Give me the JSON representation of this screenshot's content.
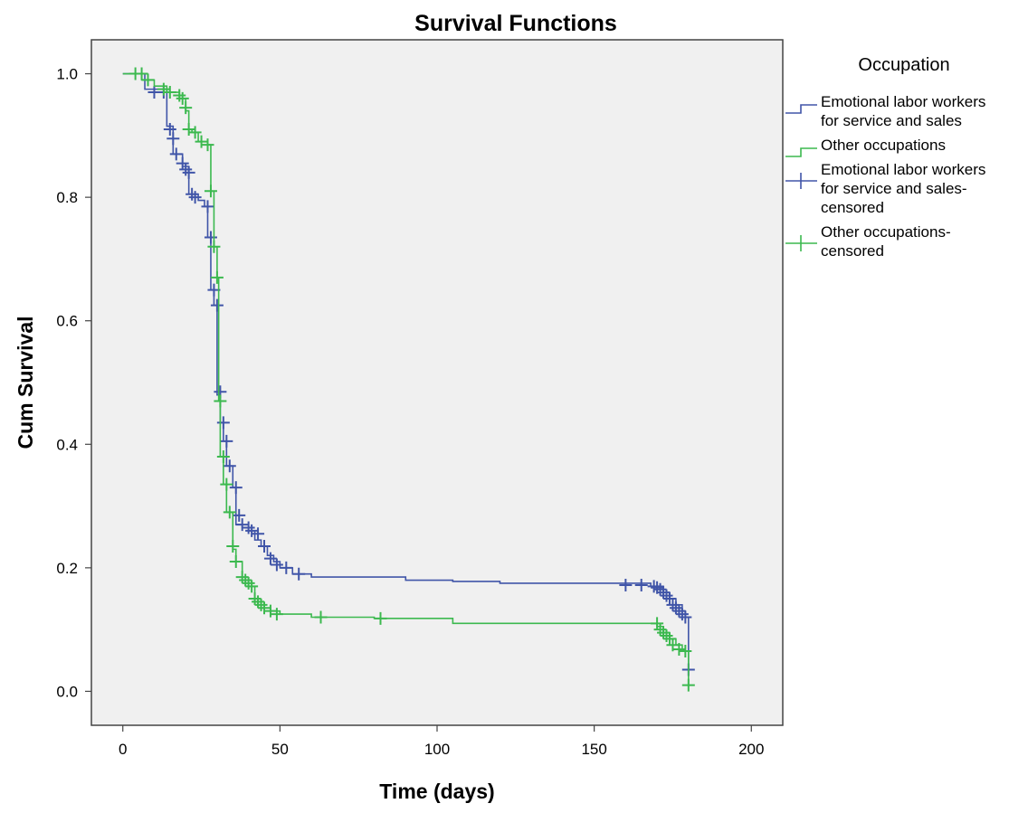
{
  "chart_data": {
    "type": "line",
    "title": "Survival Functions",
    "xlabel": "Time (days)",
    "ylabel": "Cum Survival",
    "xlim": [
      -10,
      210
    ],
    "ylim": [
      -0.055,
      1.055
    ],
    "xticks": [
      0,
      50,
      100,
      150,
      200
    ],
    "xtick_labels": [
      "0",
      "50",
      "100",
      "150",
      "200"
    ],
    "yticks": [
      0.0,
      0.2,
      0.4,
      0.6,
      0.8,
      1.0
    ],
    "ytick_labels": [
      "0.0",
      "0.2",
      "0.4",
      "0.6",
      "0.8",
      "1.0"
    ],
    "grid": false,
    "plot_background": "#f0f0f0",
    "legend": {
      "title": "Occupation",
      "placement": "right",
      "entries": [
        {
          "lines": [
            "Emotional labor workers",
            "for service and sales"
          ],
          "kind": "step",
          "color": "#4055a8"
        },
        {
          "lines": [
            "Other occupations"
          ],
          "kind": "step",
          "color": "#3cb94f"
        },
        {
          "lines": [
            "Emotional labor workers",
            "for service and sales-",
            "censored"
          ],
          "kind": "censor",
          "color": "#4055a8"
        },
        {
          "lines": [
            "Other occupations-",
            "censored"
          ],
          "kind": "censor",
          "color": "#3cb94f"
        }
      ]
    },
    "series": [
      {
        "name": "Emotional labor workers for service and sales",
        "color": "#4055a8",
        "steps": [
          [
            0,
            1.0
          ],
          [
            7,
            0.975
          ],
          [
            14,
            0.915
          ],
          [
            16,
            0.87
          ],
          [
            19,
            0.85
          ],
          [
            21,
            0.805
          ],
          [
            24,
            0.795
          ],
          [
            26,
            0.785
          ],
          [
            27,
            0.735
          ],
          [
            28,
            0.65
          ],
          [
            29,
            0.625
          ],
          [
            30,
            0.48
          ],
          [
            31,
            0.435
          ],
          [
            32,
            0.405
          ],
          [
            33,
            0.365
          ],
          [
            35,
            0.33
          ],
          [
            36,
            0.27
          ],
          [
            38,
            0.265
          ],
          [
            40,
            0.26
          ],
          [
            42,
            0.245
          ],
          [
            44,
            0.235
          ],
          [
            46,
            0.22
          ],
          [
            48,
            0.21
          ],
          [
            50,
            0.2
          ],
          [
            54,
            0.19
          ],
          [
            60,
            0.185
          ],
          [
            90,
            0.18
          ],
          [
            105,
            0.178
          ],
          [
            120,
            0.175
          ],
          [
            168,
            0.17
          ],
          [
            172,
            0.16
          ],
          [
            174,
            0.15
          ],
          [
            176,
            0.14
          ],
          [
            178,
            0.13
          ],
          [
            179,
            0.12
          ],
          [
            180,
            0.035
          ]
        ],
        "censored": [
          [
            10,
            0.97
          ],
          [
            13,
            0.97
          ],
          [
            15,
            0.91
          ],
          [
            16,
            0.895
          ],
          [
            17,
            0.87
          ],
          [
            19,
            0.855
          ],
          [
            20,
            0.845
          ],
          [
            21,
            0.84
          ],
          [
            22,
            0.805
          ],
          [
            23,
            0.8
          ],
          [
            27,
            0.785
          ],
          [
            28,
            0.735
          ],
          [
            29,
            0.65
          ],
          [
            30,
            0.625
          ],
          [
            31,
            0.485
          ],
          [
            32,
            0.435
          ],
          [
            33,
            0.405
          ],
          [
            34,
            0.365
          ],
          [
            36,
            0.33
          ],
          [
            37,
            0.285
          ],
          [
            38,
            0.27
          ],
          [
            40,
            0.265
          ],
          [
            41,
            0.26
          ],
          [
            43,
            0.255
          ],
          [
            45,
            0.235
          ],
          [
            47,
            0.215
          ],
          [
            49,
            0.205
          ],
          [
            52,
            0.2
          ],
          [
            56,
            0.19
          ],
          [
            160,
            0.172
          ],
          [
            165,
            0.172
          ],
          [
            169,
            0.17
          ],
          [
            170,
            0.168
          ],
          [
            171,
            0.165
          ],
          [
            172,
            0.16
          ],
          [
            173,
            0.155
          ],
          [
            174,
            0.15
          ],
          [
            175,
            0.14
          ],
          [
            176,
            0.135
          ],
          [
            177,
            0.13
          ],
          [
            178,
            0.125
          ],
          [
            179,
            0.12
          ],
          [
            180,
            0.035
          ]
        ]
      },
      {
        "name": "Other occupations",
        "color": "#3cb94f",
        "steps": [
          [
            0,
            1.0
          ],
          [
            6,
            0.99
          ],
          [
            10,
            0.98
          ],
          [
            14,
            0.97
          ],
          [
            18,
            0.96
          ],
          [
            20,
            0.94
          ],
          [
            21,
            0.91
          ],
          [
            22,
            0.905
          ],
          [
            24,
            0.89
          ],
          [
            27,
            0.885
          ],
          [
            28,
            0.81
          ],
          [
            29,
            0.72
          ],
          [
            30,
            0.67
          ],
          [
            30.5,
            0.47
          ],
          [
            31,
            0.38
          ],
          [
            32,
            0.335
          ],
          [
            33,
            0.29
          ],
          [
            35,
            0.23
          ],
          [
            36,
            0.21
          ],
          [
            38,
            0.18
          ],
          [
            40,
            0.17
          ],
          [
            42,
            0.145
          ],
          [
            44,
            0.135
          ],
          [
            47,
            0.13
          ],
          [
            50,
            0.125
          ],
          [
            60,
            0.12
          ],
          [
            80,
            0.118
          ],
          [
            105,
            0.11
          ],
          [
            170,
            0.105
          ],
          [
            172,
            0.095
          ],
          [
            174,
            0.085
          ],
          [
            176,
            0.075
          ],
          [
            178,
            0.065
          ],
          [
            180,
            0.01
          ]
        ],
        "censored": [
          [
            4,
            1.0
          ],
          [
            6,
            1.0
          ],
          [
            8,
            0.99
          ],
          [
            13,
            0.975
          ],
          [
            15,
            0.97
          ],
          [
            18,
            0.965
          ],
          [
            19,
            0.96
          ],
          [
            20,
            0.945
          ],
          [
            21,
            0.91
          ],
          [
            23,
            0.905
          ],
          [
            25,
            0.89
          ],
          [
            27,
            0.885
          ],
          [
            28,
            0.81
          ],
          [
            29,
            0.72
          ],
          [
            30,
            0.67
          ],
          [
            31,
            0.47
          ],
          [
            32,
            0.38
          ],
          [
            33,
            0.335
          ],
          [
            34,
            0.29
          ],
          [
            35,
            0.235
          ],
          [
            36,
            0.21
          ],
          [
            38,
            0.185
          ],
          [
            39,
            0.18
          ],
          [
            40,
            0.175
          ],
          [
            41,
            0.17
          ],
          [
            42,
            0.15
          ],
          [
            43,
            0.145
          ],
          [
            44,
            0.14
          ],
          [
            45,
            0.135
          ],
          [
            47,
            0.13
          ],
          [
            49,
            0.125
          ],
          [
            63,
            0.12
          ],
          [
            82,
            0.118
          ],
          [
            170,
            0.11
          ],
          [
            171,
            0.1
          ],
          [
            172,
            0.095
          ],
          [
            173,
            0.09
          ],
          [
            174,
            0.085
          ],
          [
            175,
            0.075
          ],
          [
            177,
            0.068
          ],
          [
            179,
            0.065
          ],
          [
            180,
            0.01
          ]
        ]
      }
    ]
  }
}
